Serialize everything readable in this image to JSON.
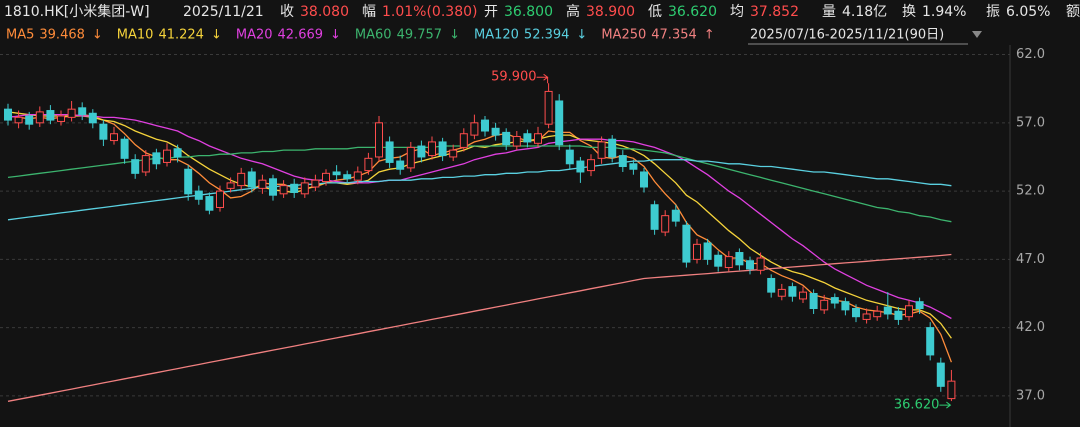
{
  "header": {
    "title": "1810.HK[小米集团-W]",
    "date": "2025/11/21",
    "stats": [
      {
        "label": "收",
        "value": "38.080",
        "color": "#ff4d4d"
      },
      {
        "label": "幅",
        "value": "1.01%(0.380)",
        "color": "#ff4d4d"
      },
      {
        "label": "开",
        "value": "36.800",
        "color": "#2ecc71"
      },
      {
        "label": "高",
        "value": "38.900",
        "color": "#ff4d4d"
      },
      {
        "label": "低",
        "value": "36.620",
        "color": "#2ecc71"
      },
      {
        "label": "均",
        "value": "37.852",
        "color": "#ff4d4d"
      },
      {
        "label": "量",
        "value": "4.18亿",
        "color": "#e6e6e6"
      },
      {
        "label": "换",
        "value": "1.94%",
        "color": "#e6e6e6"
      },
      {
        "label": "振",
        "value": "6.05%",
        "color": "#e6e6e6"
      },
      {
        "label": "额"
      }
    ]
  },
  "chart_data": {
    "type": "candlestick",
    "range_selector": "2025/07/16-2025/11/21(90日)",
    "up_color": "#ff4d4d",
    "down_color": "#3ecbd0",
    "grid": true,
    "ylim": [
      35.6,
      62.7
    ],
    "yticks": [
      {
        "value": 37,
        "label": "37.0"
      },
      {
        "value": 42,
        "label": "42.0"
      },
      {
        "value": 47,
        "label": "47.0"
      },
      {
        "value": 52,
        "label": "52.0"
      },
      {
        "value": 57,
        "label": "57.0"
      },
      {
        "value": 62,
        "label": "62.0"
      }
    ],
    "max_label": "59.900",
    "min_label": "36.620",
    "open": [
      58.0,
      57.0,
      57.5,
      57.0,
      57.9,
      57.1,
      57.4,
      58.1,
      57.7,
      56.9,
      55.7,
      55.8,
      54.3,
      53.4,
      54.8,
      54.1,
      55.1,
      53.6,
      52.0,
      51.6,
      50.8,
      52.2,
      52.4,
      53.4,
      52.2,
      52.9,
      51.8,
      52.5,
      51.8,
      52.3,
      52.7,
      53.4,
      53.2,
      52.8,
      53.5,
      54.5,
      55.6,
      54.2,
      53.7,
      55.3,
      54.6,
      55.6,
      54.5,
      55.2,
      56.1,
      57.2,
      56.6,
      56.3,
      55.3,
      56.2,
      55.5,
      56.9,
      58.6,
      55.0,
      54.2,
      53.5,
      54.4,
      55.8,
      54.6,
      54.0,
      53.4,
      51.0,
      49.0,
      50.6,
      49.5,
      47.0,
      48.2,
      47.3,
      46.4,
      47.5,
      46.9,
      46.2,
      45.6,
      44.3,
      45.0,
      44.1,
      44.5,
      43.3,
      44.2,
      43.9,
      43.4,
      42.6,
      42.8,
      43.5,
      43.2,
      42.8,
      43.9,
      42.0,
      39.4,
      36.8
    ],
    "high": [
      58.4,
      57.9,
      57.8,
      58.2,
      58.3,
      57.9,
      58.6,
      58.5,
      58.0,
      57.2,
      56.7,
      56.0,
      54.7,
      55.0,
      55.1,
      55.5,
      55.4,
      53.9,
      52.4,
      51.9,
      52.4,
      53.0,
      53.7,
      53.7,
      53.2,
      53.2,
      52.8,
      52.9,
      53.0,
      53.2,
      53.6,
      53.9,
      53.5,
      53.8,
      54.8,
      57.5,
      56.0,
      54.6,
      55.6,
      55.7,
      56.0,
      55.9,
      55.4,
      56.6,
      57.6,
      57.5,
      57.0,
      56.6,
      56.4,
      56.5,
      56.7,
      59.9,
      59.1,
      55.4,
      54.5,
      54.7,
      56.0,
      56.1,
      55.0,
      54.3,
      53.7,
      51.3,
      50.6,
      51.0,
      49.8,
      48.5,
      48.5,
      47.6,
      47.6,
      47.8,
      47.2,
      47.5,
      45.9,
      45.2,
      45.3,
      45.0,
      44.8,
      44.4,
      44.5,
      44.2,
      43.7,
      43.4,
      43.6,
      44.6,
      43.5,
      44.0,
      44.2,
      42.4,
      39.8,
      38.9
    ],
    "low": [
      56.8,
      56.6,
      56.5,
      56.7,
      56.9,
      56.8,
      57.1,
      57.2,
      56.6,
      55.3,
      55.4,
      54.0,
      52.9,
      53.1,
      53.6,
      53.8,
      54.1,
      51.3,
      51.0,
      50.3,
      50.5,
      51.9,
      52.1,
      51.9,
      51.8,
      51.3,
      51.5,
      51.5,
      51.5,
      52.0,
      52.4,
      52.8,
      52.6,
      52.5,
      53.2,
      54.2,
      53.7,
      53.2,
      53.4,
      54.1,
      54.3,
      54.2,
      54.2,
      54.9,
      55.8,
      56.0,
      55.7,
      55.0,
      55.0,
      55.2,
      55.2,
      56.6,
      55.0,
      53.6,
      52.6,
      53.1,
      54.0,
      54.1,
      53.4,
      53.2,
      51.9,
      48.8,
      48.7,
      49.4,
      46.4,
      46.7,
      46.6,
      46.1,
      46.1,
      46.2,
      45.9,
      45.9,
      44.2,
      44.0,
      43.9,
      43.8,
      43.0,
      43.0,
      43.4,
      42.9,
      42.4,
      42.3,
      42.5,
      42.6,
      42.2,
      42.5,
      43.0,
      39.6,
      37.3,
      36.62
    ],
    "close": [
      57.2,
      57.4,
      56.9,
      57.8,
      57.2,
      57.5,
      58.0,
      57.6,
      57.0,
      55.8,
      56.2,
      54.4,
      53.3,
      54.6,
      54.0,
      55.0,
      54.5,
      51.8,
      51.4,
      50.6,
      52.0,
      52.6,
      53.3,
      52.3,
      52.8,
      51.7,
      52.4,
      51.9,
      52.6,
      52.8,
      53.3,
      53.2,
      52.9,
      53.4,
      54.4,
      57.0,
      54.1,
      53.6,
      55.2,
      54.5,
      55.6,
      54.6,
      55.0,
      56.2,
      57.0,
      56.4,
      56.1,
      55.4,
      56.0,
      55.6,
      56.2,
      59.3,
      55.4,
      54.0,
      53.4,
      54.3,
      55.6,
      54.5,
      53.8,
      53.6,
      52.3,
      49.2,
      50.2,
      49.8,
      46.8,
      48.1,
      47.0,
      46.5,
      47.2,
      46.6,
      46.3,
      47.1,
      44.6,
      44.8,
      44.3,
      44.6,
      43.4,
      44.0,
      43.8,
      43.3,
      42.8,
      43.0,
      43.2,
      43.0,
      42.6,
      43.6,
      43.4,
      40.0,
      37.7,
      38.08
    ],
    "series": [
      {
        "name": "MA5",
        "color": "#ff8c3a",
        "arrow": "↓",
        "values": [
          57.5,
          57.4,
          57.3,
          57.4,
          57.3,
          57.4,
          57.5,
          57.6,
          57.5,
          57.2,
          56.9,
          56.2,
          55.4,
          54.8,
          54.5,
          54.3,
          54.3,
          53.9,
          53.3,
          52.6,
          52.1,
          51.5,
          51.6,
          52.0,
          52.6,
          52.5,
          52.5,
          52.2,
          52.2,
          52.3,
          52.6,
          52.8,
          52.9,
          53.1,
          53.4,
          54.2,
          54.4,
          54.5,
          54.9,
          55.1,
          54.6,
          54.8,
          55.0,
          55.2,
          55.6,
          55.8,
          56.1,
          56.2,
          55.9,
          55.7,
          55.7,
          56.4,
          56.3,
          56.3,
          55.7,
          55.3,
          54.5,
          54.4,
          54.6,
          54.4,
          53.8,
          52.7,
          51.8,
          51.0,
          49.7,
          48.8,
          48.4,
          47.7,
          47.1,
          47.1,
          46.7,
          46.7,
          46.2,
          45.8,
          45.5,
          45.1,
          44.4,
          44.2,
          44.0,
          43.9,
          43.5,
          43.3,
          43.2,
          43.1,
          42.9,
          43.0,
          43.2,
          42.7,
          41.5,
          39.468
        ]
      },
      {
        "name": "MA10",
        "color": "#f5d33b",
        "arrow": "↓",
        "values": [
          57.8,
          57.7,
          57.6,
          57.5,
          57.5,
          57.5,
          57.5,
          57.5,
          57.4,
          57.2,
          57.1,
          56.8,
          56.4,
          56.1,
          55.8,
          55.6,
          55.2,
          54.6,
          54.1,
          53.6,
          53.2,
          52.8,
          52.5,
          52.3,
          52.3,
          52.1,
          52.0,
          51.9,
          52.1,
          52.4,
          52.6,
          52.6,
          52.5,
          52.6,
          52.8,
          53.4,
          53.6,
          53.7,
          54.0,
          54.2,
          54.4,
          54.6,
          54.8,
          55.0,
          55.3,
          55.2,
          55.4,
          55.5,
          55.6,
          55.7,
          55.8,
          56.0,
          56.1,
          56.1,
          55.8,
          55.7,
          55.6,
          55.5,
          55.3,
          55.0,
          54.6,
          54.0,
          53.3,
          52.6,
          51.7,
          51.2,
          50.5,
          49.8,
          49.1,
          48.5,
          47.8,
          47.3,
          46.8,
          46.4,
          46.1,
          45.9,
          45.6,
          45.3,
          44.9,
          44.6,
          44.3,
          44.0,
          43.8,
          43.6,
          43.4,
          43.3,
          43.3,
          43.0,
          42.3,
          41.224
        ]
      },
      {
        "name": "MA20",
        "color": "#e040e0",
        "arrow": "↓",
        "values": [
          57.4,
          57.5,
          57.6,
          57.6,
          57.6,
          57.6,
          57.6,
          57.5,
          57.5,
          57.4,
          57.4,
          57.3,
          57.2,
          57.0,
          56.8,
          56.6,
          56.4,
          56.0,
          55.7,
          55.3,
          55.0,
          54.7,
          54.4,
          54.2,
          54.0,
          53.7,
          53.4,
          53.1,
          52.9,
          52.8,
          52.8,
          52.7,
          52.6,
          52.6,
          52.6,
          52.7,
          52.8,
          52.8,
          53.0,
          53.2,
          53.4,
          53.6,
          53.8,
          54.0,
          54.3,
          54.5,
          54.7,
          54.8,
          55.0,
          55.1,
          55.2,
          55.5,
          55.6,
          55.7,
          55.8,
          55.8,
          55.8,
          55.7,
          55.7,
          55.6,
          55.4,
          55.2,
          54.9,
          54.6,
          54.2,
          53.7,
          53.2,
          52.6,
          52.0,
          51.5,
          50.9,
          50.3,
          49.7,
          49.1,
          48.5,
          48.0,
          47.4,
          46.8,
          46.3,
          45.9,
          45.5,
          45.1,
          44.8,
          44.5,
          44.2,
          44.0,
          43.8,
          43.5,
          43.1,
          42.669
        ]
      },
      {
        "name": "MA60",
        "color": "#3cb46e",
        "arrow": "↓",
        "values": [
          53.0,
          53.1,
          53.2,
          53.3,
          53.4,
          53.5,
          53.6,
          53.7,
          53.8,
          53.9,
          54.0,
          54.1,
          54.2,
          54.3,
          54.4,
          54.4,
          54.5,
          54.5,
          54.6,
          54.6,
          54.7,
          54.7,
          54.8,
          54.8,
          54.9,
          54.9,
          55.0,
          55.0,
          55.0,
          55.1,
          55.1,
          55.1,
          55.1,
          55.2,
          55.2,
          55.2,
          55.2,
          55.2,
          55.2,
          55.2,
          55.2,
          55.3,
          55.3,
          55.3,
          55.3,
          55.3,
          55.3,
          55.3,
          55.3,
          55.3,
          55.3,
          55.3,
          55.3,
          55.3,
          55.3,
          55.2,
          55.2,
          55.2,
          55.1,
          55.1,
          55.0,
          54.9,
          54.8,
          54.6,
          54.4,
          54.2,
          54.0,
          53.8,
          53.6,
          53.4,
          53.2,
          53.0,
          52.8,
          52.6,
          52.4,
          52.2,
          52.0,
          51.8,
          51.6,
          51.4,
          51.2,
          51.0,
          50.8,
          50.7,
          50.5,
          50.4,
          50.2,
          50.1,
          49.9,
          49.757
        ]
      },
      {
        "name": "MA120",
        "color": "#5ad0e0",
        "arrow": "↓",
        "values": [
          49.9,
          50.0,
          50.1,
          50.2,
          50.3,
          50.4,
          50.5,
          50.6,
          50.7,
          50.8,
          50.9,
          51.0,
          51.1,
          51.2,
          51.3,
          51.4,
          51.5,
          51.6,
          51.7,
          51.8,
          51.9,
          52.0,
          52.1,
          52.2,
          52.3,
          52.3,
          52.4,
          52.4,
          52.5,
          52.5,
          52.6,
          52.6,
          52.6,
          52.7,
          52.7,
          52.7,
          52.8,
          52.8,
          52.8,
          52.9,
          52.9,
          53.0,
          53.0,
          53.1,
          53.1,
          53.2,
          53.2,
          53.3,
          53.3,
          53.4,
          53.4,
          53.5,
          53.5,
          53.6,
          53.7,
          53.8,
          53.9,
          54.0,
          54.1,
          54.2,
          54.2,
          54.3,
          54.3,
          54.3,
          54.3,
          54.2,
          54.2,
          54.1,
          54.0,
          54.0,
          53.9,
          53.8,
          53.8,
          53.7,
          53.6,
          53.5,
          53.4,
          53.4,
          53.3,
          53.2,
          53.1,
          53.0,
          52.9,
          52.9,
          52.8,
          52.7,
          52.6,
          52.5,
          52.5,
          52.394
        ]
      },
      {
        "name": "MA250",
        "color": "#f08080",
        "arrow": "↑",
        "values": [
          36.6,
          36.75,
          36.9,
          37.05,
          37.2,
          37.35,
          37.5,
          37.65,
          37.8,
          37.95,
          38.1,
          38.25,
          38.4,
          38.55,
          38.7,
          38.85,
          39.0,
          39.15,
          39.3,
          39.45,
          39.6,
          39.75,
          39.9,
          40.05,
          40.2,
          40.35,
          40.5,
          40.65,
          40.8,
          40.95,
          41.1,
          41.25,
          41.4,
          41.55,
          41.7,
          41.85,
          42.0,
          42.15,
          42.3,
          42.45,
          42.6,
          42.75,
          42.9,
          43.05,
          43.2,
          43.35,
          43.5,
          43.65,
          43.8,
          43.95,
          44.1,
          44.25,
          44.4,
          44.55,
          44.7,
          44.85,
          45.0,
          45.15,
          45.3,
          45.45,
          45.6,
          45.66,
          45.72,
          45.78,
          45.84,
          45.9,
          45.96,
          46.02,
          46.08,
          46.14,
          46.2,
          46.26,
          46.32,
          46.38,
          46.44,
          46.5,
          46.56,
          46.62,
          46.68,
          46.74,
          46.8,
          46.86,
          46.92,
          46.98,
          47.04,
          47.1,
          47.16,
          47.22,
          47.28,
          47.354
        ]
      }
    ]
  }
}
